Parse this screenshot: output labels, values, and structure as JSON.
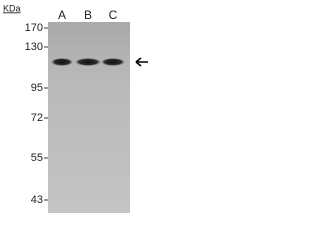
{
  "blot": {
    "unit": "KDa",
    "markers": [
      "170",
      "130",
      "95",
      "72",
      "55",
      "43"
    ],
    "lanes": [
      "A",
      "B",
      "C"
    ]
  }
}
